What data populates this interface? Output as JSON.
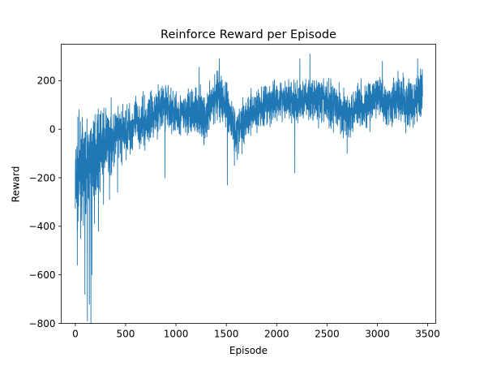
{
  "chart_data": {
    "type": "line",
    "title": "Reinforce Reward per Episode",
    "xlabel": "Episode",
    "ylabel": "Reward",
    "xlim": [
      -140,
      3580
    ],
    "ylim": [
      -800,
      350
    ],
    "xticks": [
      0,
      500,
      1000,
      1500,
      2000,
      2500,
      3000,
      3500
    ],
    "yticks": [
      -800,
      -600,
      -400,
      -200,
      0,
      200
    ],
    "xtick_labels": [
      "0",
      "500",
      "1000",
      "1500",
      "2000",
      "2500",
      "3000",
      "3500"
    ],
    "ytick_labels": [
      "−800",
      "−600",
      "−400",
      "−200",
      "0",
      "200"
    ],
    "grid": false,
    "series": [
      {
        "color": "#1f77b4",
        "episodes": 3450,
        "trend": {
          "x": [
            0,
            50,
            100,
            150,
            200,
            300,
            400,
            500,
            600,
            700,
            800,
            900,
            1000,
            1100,
            1200,
            1300,
            1400,
            1500,
            1600,
            1700,
            1800,
            1900,
            2000,
            2100,
            2200,
            2300,
            2400,
            2500,
            2600,
            2700,
            2800,
            2900,
            3000,
            3100,
            3200,
            3300,
            3400,
            3450
          ],
          "y": [
            -230,
            -180,
            -170,
            -130,
            -100,
            -60,
            -30,
            -10,
            30,
            20,
            80,
            100,
            60,
            60,
            80,
            40,
            150,
            100,
            -20,
            60,
            80,
            90,
            120,
            130,
            100,
            130,
            120,
            110,
            100,
            50,
            110,
            90,
            140,
            100,
            130,
            100,
            120,
            180
          ]
        },
        "spread": {
          "x": [
            0,
            200,
            500,
            1000,
            1500,
            2000,
            2500,
            3000,
            3450
          ],
          "y": [
            180,
            140,
            90,
            80,
            90,
            70,
            80,
            80,
            90
          ]
        },
        "dips": [
          {
            "x": 20,
            "y": -560
          },
          {
            "x": 95,
            "y": -680
          },
          {
            "x": 120,
            "y": -790
          },
          {
            "x": 140,
            "y": -720
          },
          {
            "x": 155,
            "y": -800
          },
          {
            "x": 165,
            "y": -600
          },
          {
            "x": 190,
            "y": -390
          },
          {
            "x": 230,
            "y": -420
          },
          {
            "x": 280,
            "y": -310
          },
          {
            "x": 340,
            "y": -290
          },
          {
            "x": 420,
            "y": -260
          },
          {
            "x": 890,
            "y": -200
          },
          {
            "x": 1230,
            "y": -150
          },
          {
            "x": 1510,
            "y": -230
          },
          {
            "x": 1580,
            "y": -150
          },
          {
            "x": 2180,
            "y": -180
          },
          {
            "x": 2700,
            "y": -100
          }
        ],
        "peaks": [
          {
            "x": 1230,
            "y": 255
          },
          {
            "x": 1430,
            "y": 290
          },
          {
            "x": 2230,
            "y": 290
          },
          {
            "x": 2330,
            "y": 310
          },
          {
            "x": 3050,
            "y": 280
          },
          {
            "x": 3400,
            "y": 290
          }
        ]
      }
    ]
  }
}
